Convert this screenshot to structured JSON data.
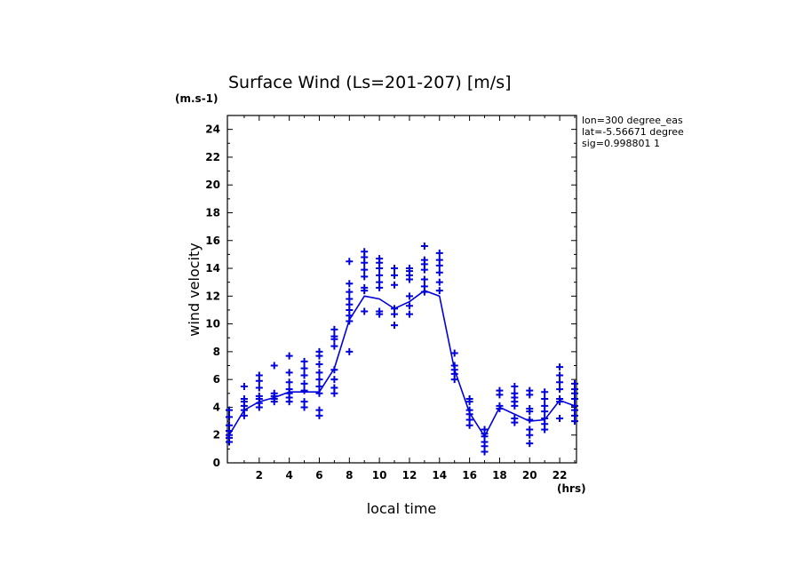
{
  "chart_data": {
    "type": "scatter",
    "title": "Surface Wind  (Ls=201-207) [m/s]",
    "ylabel": "wind velocity",
    "yunit": "(m.s-1)",
    "xlabel": "local time",
    "xunit": "(hrs)",
    "xlim": [
      0,
      23
    ],
    "ylim": [
      0,
      25
    ],
    "xticks": [
      "2",
      "4",
      "6",
      "8",
      "10",
      "12",
      "14",
      "16",
      "18",
      "20",
      "22"
    ],
    "yticks": [
      "0",
      "2",
      "4",
      "6",
      "8",
      "10",
      "12",
      "14",
      "16",
      "18",
      "20",
      "22",
      "24"
    ],
    "info": [
      "lon=300 degree_eas",
      "lat=-5.56671 degree",
      "sig=0.998801 1"
    ],
    "color": "#0000dd",
    "series": [
      {
        "type": "scatter",
        "points": [
          [
            0,
            1.5
          ],
          [
            0,
            1.8
          ],
          [
            0,
            2.0
          ],
          [
            0,
            2.3
          ],
          [
            0,
            2.7
          ],
          [
            0,
            3.3
          ],
          [
            0,
            3.8
          ],
          [
            1,
            3.4
          ],
          [
            1,
            3.8
          ],
          [
            1,
            4.1
          ],
          [
            1,
            4.4
          ],
          [
            1,
            4.6
          ],
          [
            1,
            5.5
          ],
          [
            2,
            4.0
          ],
          [
            2,
            4.3
          ],
          [
            2,
            4.6
          ],
          [
            2,
            4.8
          ],
          [
            2,
            5.4
          ],
          [
            2,
            5.9
          ],
          [
            2,
            6.3
          ],
          [
            3,
            4.4
          ],
          [
            3,
            4.6
          ],
          [
            3,
            4.8
          ],
          [
            3,
            5.0
          ],
          [
            3,
            7.0
          ],
          [
            4,
            4.4
          ],
          [
            4,
            4.7
          ],
          [
            4,
            5.0
          ],
          [
            4,
            5.3
          ],
          [
            4,
            5.8
          ],
          [
            4,
            6.5
          ],
          [
            4,
            7.7
          ],
          [
            5,
            4.0
          ],
          [
            5,
            4.4
          ],
          [
            5,
            5.2
          ],
          [
            5,
            5.7
          ],
          [
            5,
            6.3
          ],
          [
            5,
            6.8
          ],
          [
            5,
            7.3
          ],
          [
            6,
            3.4
          ],
          [
            6,
            3.8
          ],
          [
            6,
            5.0
          ],
          [
            6,
            5.5
          ],
          [
            6,
            6.0
          ],
          [
            6,
            6.5
          ],
          [
            6,
            7.1
          ],
          [
            6,
            7.7
          ],
          [
            6,
            8.0
          ],
          [
            7,
            5.0
          ],
          [
            7,
            5.4
          ],
          [
            7,
            6.0
          ],
          [
            7,
            6.7
          ],
          [
            7,
            8.4
          ],
          [
            7,
            8.9
          ],
          [
            7,
            9.1
          ],
          [
            7,
            9.6
          ],
          [
            8,
            8.0
          ],
          [
            8,
            10.2
          ],
          [
            8,
            10.6
          ],
          [
            8,
            11.0
          ],
          [
            8,
            11.4
          ],
          [
            8,
            11.8
          ],
          [
            8,
            12.3
          ],
          [
            8,
            12.9
          ],
          [
            8,
            14.5
          ],
          [
            9,
            10.9
          ],
          [
            9,
            12.4
          ],
          [
            9,
            12.6
          ],
          [
            9,
            13.4
          ],
          [
            9,
            13.9
          ],
          [
            9,
            14.4
          ],
          [
            9,
            14.8
          ],
          [
            9,
            15.2
          ],
          [
            10,
            10.7
          ],
          [
            10,
            10.9
          ],
          [
            10,
            12.6
          ],
          [
            10,
            13.0
          ],
          [
            10,
            13.5
          ],
          [
            10,
            14.0
          ],
          [
            10,
            14.4
          ],
          [
            10,
            14.7
          ],
          [
            11,
            9.9
          ],
          [
            11,
            10.7
          ],
          [
            11,
            11.1
          ],
          [
            11,
            12.8
          ],
          [
            11,
            13.5
          ],
          [
            11,
            14.0
          ],
          [
            12,
            10.7
          ],
          [
            12,
            11.3
          ],
          [
            12,
            12.0
          ],
          [
            12,
            13.2
          ],
          [
            12,
            13.5
          ],
          [
            12,
            13.8
          ],
          [
            12,
            14.0
          ],
          [
            13,
            12.3
          ],
          [
            13,
            12.7
          ],
          [
            13,
            13.2
          ],
          [
            13,
            13.9
          ],
          [
            13,
            14.3
          ],
          [
            13,
            14.6
          ],
          [
            13,
            15.6
          ],
          [
            14,
            12.4
          ],
          [
            14,
            13.0
          ],
          [
            14,
            13.7
          ],
          [
            14,
            14.2
          ],
          [
            14,
            14.6
          ],
          [
            14,
            15.1
          ],
          [
            15,
            6.0
          ],
          [
            15,
            6.4
          ],
          [
            15,
            6.7
          ],
          [
            15,
            7.0
          ],
          [
            15,
            7.9
          ],
          [
            16,
            2.7
          ],
          [
            16,
            3.1
          ],
          [
            16,
            3.5
          ],
          [
            16,
            3.8
          ],
          [
            16,
            4.4
          ],
          [
            16,
            4.6
          ],
          [
            17,
            0.8
          ],
          [
            17,
            1.2
          ],
          [
            17,
            1.5
          ],
          [
            17,
            1.9
          ],
          [
            17,
            2.1
          ],
          [
            17,
            2.4
          ],
          [
            18,
            3.9
          ],
          [
            18,
            4.1
          ],
          [
            18,
            4.9
          ],
          [
            18,
            5.2
          ],
          [
            19,
            2.9
          ],
          [
            19,
            3.2
          ],
          [
            19,
            4.1
          ],
          [
            19,
            4.4
          ],
          [
            19,
            4.7
          ],
          [
            19,
            5.0
          ],
          [
            19,
            5.5
          ],
          [
            20,
            1.4
          ],
          [
            20,
            2.0
          ],
          [
            20,
            2.4
          ],
          [
            20,
            3.1
          ],
          [
            20,
            3.7
          ],
          [
            20,
            3.9
          ],
          [
            20,
            4.9
          ],
          [
            20,
            5.2
          ],
          [
            21,
            2.4
          ],
          [
            21,
            2.8
          ],
          [
            21,
            3.2
          ],
          [
            21,
            3.7
          ],
          [
            21,
            4.1
          ],
          [
            21,
            4.6
          ],
          [
            21,
            5.1
          ],
          [
            22,
            3.2
          ],
          [
            22,
            4.4
          ],
          [
            22,
            4.6
          ],
          [
            22,
            5.3
          ],
          [
            22,
            5.8
          ],
          [
            22,
            6.3
          ],
          [
            22,
            6.9
          ],
          [
            23,
            3.0
          ],
          [
            23,
            3.4
          ],
          [
            23,
            3.8
          ],
          [
            23,
            4.1
          ],
          [
            23,
            4.6
          ],
          [
            23,
            5.0
          ],
          [
            23,
            5.3
          ],
          [
            23,
            5.7
          ]
        ]
      },
      {
        "type": "line",
        "x": [
          0,
          1,
          2,
          3,
          4,
          5,
          6,
          7,
          8,
          9,
          10,
          11,
          12,
          13,
          14,
          15,
          16,
          17,
          18,
          19,
          20,
          21,
          22,
          23
        ],
        "values": [
          2.0,
          3.8,
          4.4,
          4.7,
          5.1,
          5.1,
          5.1,
          6.8,
          10.3,
          12.0,
          11.8,
          11.1,
          11.6,
          12.4,
          12.0,
          6.7,
          3.6,
          1.9,
          4.0,
          3.5,
          3.0,
          3.1,
          4.5,
          4.1
        ]
      }
    ]
  }
}
